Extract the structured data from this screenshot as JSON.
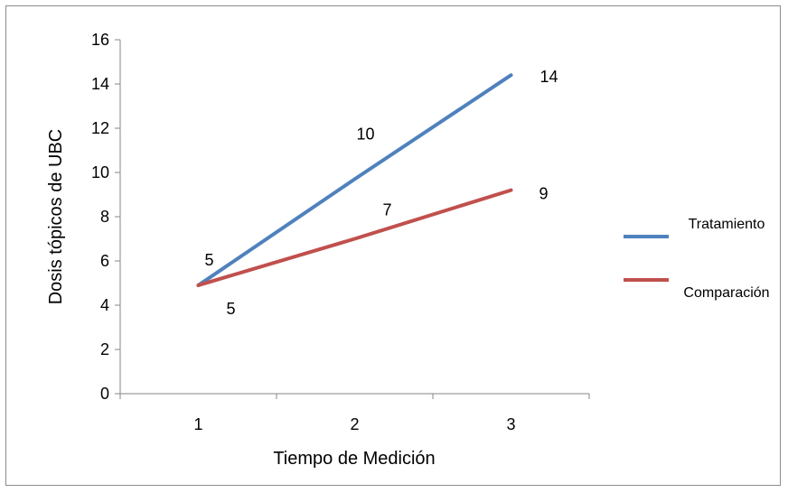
{
  "chart_data": {
    "type": "line",
    "title": "",
    "xlabel": "Tiempo de Medición",
    "ylabel": "Dosis tópicos de UBC",
    "categories": [
      "1",
      "2",
      "3"
    ],
    "ylim": [
      0,
      16
    ],
    "yticks": [
      "0",
      "2",
      "4",
      "6",
      "8",
      "10",
      "12",
      "14",
      "16"
    ],
    "grid": false,
    "legend_position": "right",
    "series": [
      {
        "name": "Tratamiento",
        "color": "#4f81bd",
        "values": [
          4.9,
          9.7,
          14.4
        ],
        "data_labels": [
          "5",
          "10",
          "14"
        ]
      },
      {
        "name": "Comparación",
        "color": "#c0504d",
        "values": [
          4.9,
          7.0,
          9.2
        ],
        "data_labels": [
          "5",
          "7",
          "9"
        ]
      }
    ]
  }
}
